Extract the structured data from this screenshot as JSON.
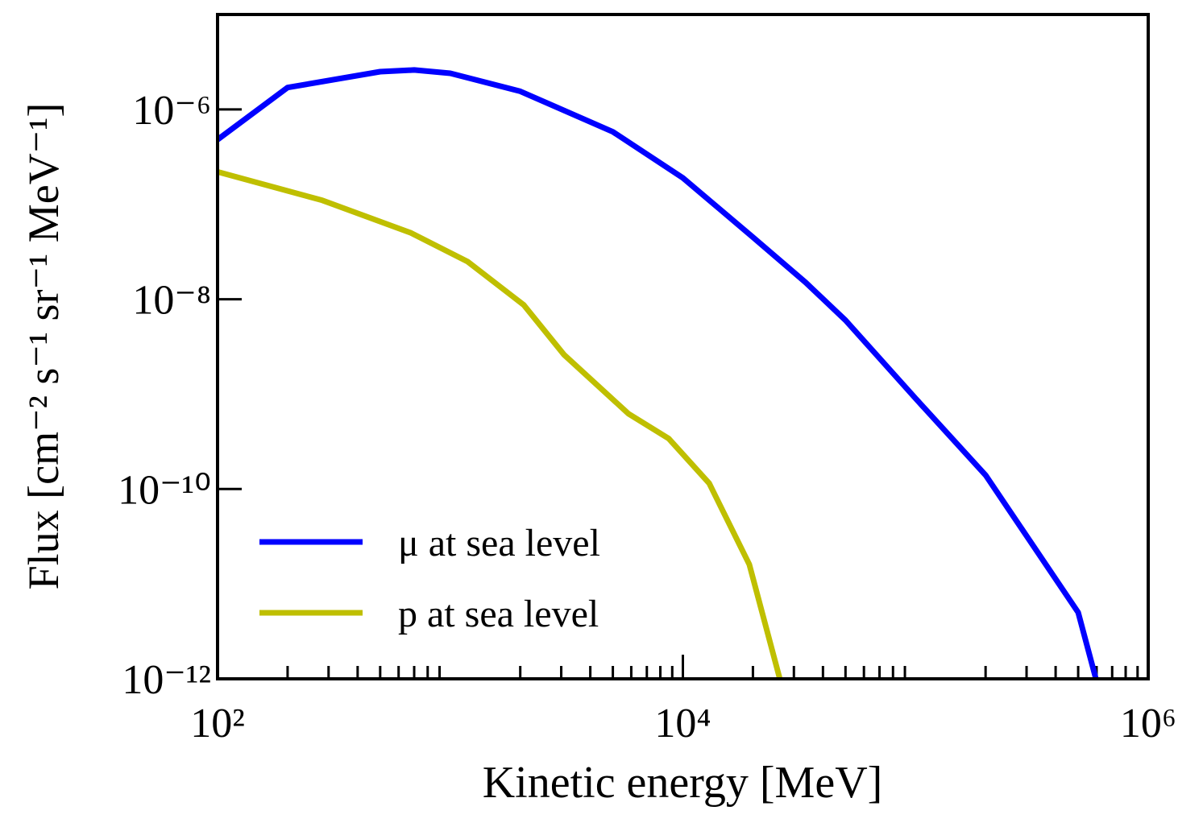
{
  "chart_data": {
    "type": "line",
    "x_label": "Kinetic energy [MeV]",
    "y_label": "Flux [cm⁻² s⁻¹ sr⁻¹ MeV⁻¹]",
    "xlog": true,
    "ylog": true,
    "xlim": [
      100,
      1000000
    ],
    "ylim": [
      1e-12,
      1e-05
    ],
    "xticks": [
      {
        "value": 100,
        "label": "10²"
      },
      {
        "value": 10000,
        "label": "10⁴"
      },
      {
        "value": 1000000,
        "label": "10⁶"
      }
    ],
    "yticks": [
      {
        "value": 1e-12,
        "label": "10⁻¹²"
      },
      {
        "value": 1e-10,
        "label": "10⁻¹⁰"
      },
      {
        "value": 1e-08,
        "label": "10⁻⁸"
      },
      {
        "value": 1e-06,
        "label": "10⁻⁶"
      }
    ],
    "legend": "lower left",
    "series": [
      {
        "name": "μ at sea level",
        "color": "#0000ff",
        "x": [
          100,
          200,
          500,
          700,
          1000,
          2000,
          5000,
          10000,
          20000,
          33700,
          50000,
          100000,
          200000,
          500000,
          596000
        ],
        "values": [
          4.8e-07,
          1.7e-06,
          2.5e-06,
          2.6e-06,
          2.4e-06,
          1.55e-06,
          5.8e-07,
          1.9e-07,
          4.5e-08,
          1.5e-08,
          6e-09,
          9e-10,
          1.4e-10,
          5e-12,
          1e-12
        ]
      },
      {
        "name": "p at sea level",
        "color": "#bfbf00",
        "x": [
          100,
          282,
          678,
          1186,
          2070,
          3084,
          5840,
          8690,
          12970,
          19300,
          26100
        ],
        "values": [
          2.2e-07,
          1.1e-07,
          5e-08,
          2.5e-08,
          8.7e-09,
          2.6e-09,
          6.2e-10,
          3.4e-10,
          1.15e-10,
          1.6e-11,
          1e-12
        ]
      }
    ]
  }
}
